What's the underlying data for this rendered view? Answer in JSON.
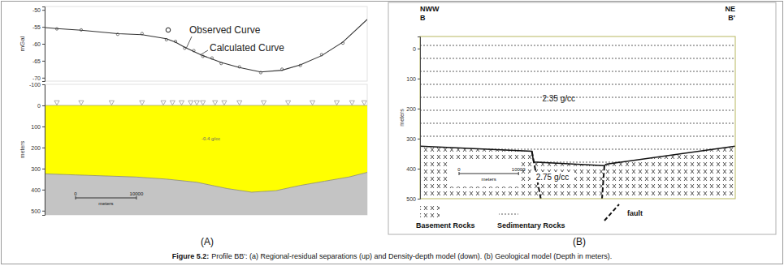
{
  "caption": {
    "label": "Figure 5.2:",
    "text": "Profile BB': (a) Regional-residual separations (up) and Density-depth model (down). (b) Geological model (Depth in meters)."
  },
  "panels": [
    "(A)",
    "(B)"
  ],
  "chart_data": [
    {
      "type": "line",
      "y_label": "mGal",
      "xlim": [
        0,
        53000
      ],
      "ylim": [
        -71,
        -49
      ],
      "yticks": [
        -50,
        -55,
        -60,
        -65,
        -70
      ],
      "tick_labels": "y",
      "legend": "upper center",
      "x": [
        0,
        2000,
        6000,
        12000,
        16000,
        20000,
        21500,
        23000,
        24500,
        26000,
        27500,
        29000,
        32000,
        35500,
        39000,
        42000,
        45500,
        49000,
        53000
      ],
      "series": [
        {
          "name": "Observed Curve",
          "type": "scatter",
          "marker": "circle",
          "color": "#555555",
          "values": [
            null,
            -55.6,
            -55.9,
            -57.2,
            -57.0,
            -58.8,
            -59.3,
            -61.3,
            -62.0,
            -63.7,
            -64.2,
            -65.8,
            -66.8,
            -68.5,
            -67.5,
            -66.4,
            -63.2,
            -59.8,
            null
          ]
        },
        {
          "name": "Calculated Curve",
          "type": "line",
          "line_style": "solid",
          "color": "#333333",
          "values": [
            -55.2,
            -55.5,
            -56.0,
            -57.0,
            -57.3,
            -58.5,
            -59.5,
            -61.0,
            -62.3,
            -63.5,
            -64.5,
            -65.5,
            -67.0,
            -68.3,
            -67.8,
            -66.2,
            -63.5,
            -59.5,
            -52.8
          ]
        }
      ]
    },
    {
      "type": "area",
      "y_label": "meters",
      "xlim": [
        0,
        53000
      ],
      "ylim": [
        -100,
        520
      ],
      "yticks": [
        -100,
        0,
        100,
        200,
        300,
        400,
        500
      ],
      "tick_labels": "y",
      "x": [
        0,
        5000,
        10000,
        15000,
        20000,
        25000,
        30000,
        34000,
        38000,
        42000,
        46000,
        50000,
        53000
      ],
      "surface_depth": 0,
      "series": [
        {
          "name": "-0.4 g/cc",
          "color": "#ffff00",
          "values": [
            325,
            330,
            335,
            340,
            350,
            365,
            395,
            412,
            405,
            380,
            360,
            340,
            318
          ]
        }
      ],
      "stations": [
        2000,
        6000,
        11000,
        16000,
        19500,
        21000,
        22500,
        24000,
        25000,
        26000,
        28000,
        29500,
        32000,
        36000,
        40000,
        44000,
        48000,
        50500,
        52500
      ],
      "scale_bar": {
        "ticks": [
          0,
          10000
        ],
        "label": "meters"
      }
    },
    {
      "type": "section",
      "y_label": "meters",
      "xlim": [
        0,
        53000
      ],
      "ylim": [
        -40,
        500
      ],
      "yticks": [
        0,
        100,
        200,
        300,
        400,
        500
      ],
      "tick_labels": "y",
      "left_label": [
        "NWW",
        "B"
      ],
      "right_label": [
        "NE",
        "B'"
      ],
      "x": [
        0,
        18800,
        19100,
        31000,
        31300,
        53000
      ],
      "layers": [
        {
          "name": "Sedimentary Rocks",
          "density_label": "2.35 g/cc"
        },
        {
          "name": "Basement Rocks",
          "density_label": "2.75 g/cc",
          "top_depth": [
            325,
            342,
            378,
            390,
            385,
            325
          ]
        }
      ],
      "faults": [
        {
          "x": [
            18800,
            20300
          ],
          "depth": [
            342,
            500
          ]
        },
        {
          "x": [
            31000,
            30600
          ],
          "depth": [
            390,
            500
          ]
        }
      ],
      "fault_label": "fault",
      "legend": "bottom",
      "scale_bar": {
        "ticks": [
          0,
          10000
        ],
        "label": "meters"
      }
    }
  ]
}
